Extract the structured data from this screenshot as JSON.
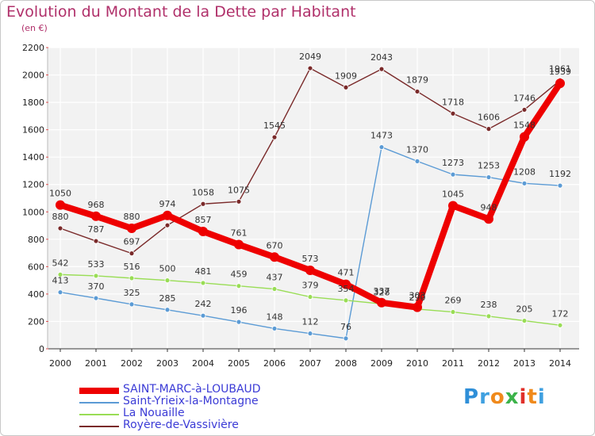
{
  "header": {
    "title": "Evolution du Montant de la Dette par Habitant",
    "subtitle": "(en €)"
  },
  "brand": {
    "letters": [
      "P",
      "r",
      "o",
      "x",
      "i",
      "t",
      "i"
    ],
    "colors": [
      "#2f8fd8",
      "#3fa0e0",
      "#f08a1c",
      "#3cb34a",
      "#e0302a",
      "#f08a1c",
      "#3fa0e0"
    ]
  },
  "chart_data": {
    "type": "line",
    "x": [
      "2000",
      "2001",
      "2002",
      "2003",
      "2004",
      "2005",
      "2006",
      "2007",
      "2008",
      "2009",
      "2010",
      "2011",
      "2012",
      "2013",
      "2014"
    ],
    "ylim": [
      0,
      2200
    ],
    "yticks": [
      "0",
      "200",
      "400",
      "600",
      "800",
      "1000",
      "1200",
      "1400",
      "1600",
      "1800",
      "2000",
      "2200"
    ],
    "grid": true,
    "legend_position": "bottom-left",
    "series": [
      {
        "name": "SAINT-MARC-à-LOUBAUD",
        "color": "#ee0000",
        "values": [
          1050,
          968,
          880,
          974,
          857,
          761,
          670,
          573,
          471,
          337,
          303,
          1045,
          948,
          1548,
          1939
        ],
        "labels": [
          "1050",
          "968",
          "880",
          "974",
          "857",
          "761",
          "670",
          "573",
          "471",
          "337",
          "303",
          "1045",
          "948",
          "1548",
          "1939"
        ]
      },
      {
        "name": "Saint-Yrieix-la-Montagne",
        "color": "#5b9bd5",
        "values": [
          413,
          370,
          325,
          285,
          242,
          196,
          148,
          112,
          76,
          1473,
          1370,
          1273,
          1253,
          1208,
          1192
        ],
        "labels": [
          "413",
          "370",
          "325",
          "285",
          "242",
          "196",
          "148",
          "112",
          "76",
          "1473",
          "1370",
          "1273",
          "1253",
          "1208",
          "1192"
        ]
      },
      {
        "name": "La Nouaille",
        "color": "#99dd55",
        "values": [
          542,
          533,
          516,
          500,
          481,
          459,
          437,
          379,
          354,
          328,
          290,
          269,
          238,
          205,
          172
        ],
        "labels": [
          "542",
          "533",
          "516",
          "500",
          "481",
          "459",
          "437",
          "379",
          "354",
          "328",
          "290",
          "269",
          "238",
          "205",
          "172"
        ]
      },
      {
        "name": "Royère-de-Vassivière",
        "color": "#7a2a2a",
        "values": [
          880,
          787,
          697,
          902,
          1058,
          1075,
          1545,
          2049,
          1909,
          2043,
          1879,
          1718,
          1606,
          1746,
          1961
        ],
        "labels": [
          "880",
          "787",
          "697",
          "",
          "1058",
          "1075",
          "1545",
          "2049",
          "1909",
          "2043",
          "1879",
          "1718",
          "1606",
          "1746",
          "1961"
        ]
      }
    ]
  }
}
